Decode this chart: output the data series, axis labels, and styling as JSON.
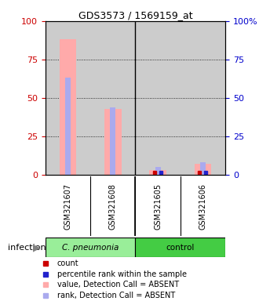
{
  "title": "GDS3573 / 1569159_at",
  "samples": [
    "GSM321607",
    "GSM321608",
    "GSM321605",
    "GSM321606"
  ],
  "ylim": [
    0,
    100
  ],
  "yticks": [
    0,
    25,
    50,
    75,
    100
  ],
  "left_tick_color": "#cc0000",
  "right_tick_color": "#0000cc",
  "pink_bar_values": [
    88,
    43,
    3,
    7
  ],
  "blue_bar_values": [
    63,
    44,
    5,
    8
  ],
  "pink_color": "#ffaaaa",
  "blue_color": "#aaaaee",
  "red_marker_color": "#cc0000",
  "blue_marker_color": "#2222cc",
  "panel_bg": "#cccccc",
  "plot_bg": "#ffffff",
  "group_bg_1": "#99ee99",
  "group_bg_2": "#44cc44",
  "legend_items": [
    {
      "label": "count",
      "color": "#cc0000"
    },
    {
      "label": "percentile rank within the sample",
      "color": "#2222cc"
    },
    {
      "label": "value, Detection Call = ABSENT",
      "color": "#ffaaaa"
    },
    {
      "label": "rank, Detection Call = ABSENT",
      "color": "#aaaaee"
    }
  ]
}
